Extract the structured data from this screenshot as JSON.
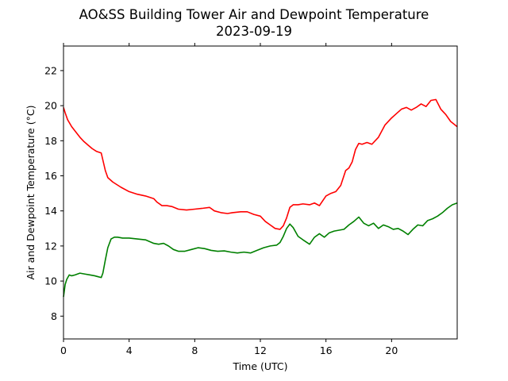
{
  "chart_data": {
    "type": "line",
    "title": "AO&SS Building Tower Air and Dewpoint Temperature",
    "subtitle": "2023-09-19",
    "xlabel": "Time (UTC)",
    "ylabel": "Air and Dewpoint Temperature (°C)",
    "xlim": [
      0,
      24
    ],
    "ylim": [
      6.7,
      23.4
    ],
    "xticks": [
      0,
      4,
      8,
      12,
      16,
      20
    ],
    "yticks": [
      8,
      10,
      12,
      14,
      16,
      18,
      20,
      22
    ],
    "grid": false,
    "legend": "none",
    "series": [
      {
        "color": "#ff0000",
        "x": [
          0,
          0.1,
          0.25,
          0.5,
          0.75,
          1.0,
          1.25,
          1.5,
          1.75,
          2.0,
          2.3,
          2.4,
          2.55,
          2.7,
          3.0,
          3.5,
          4.0,
          4.5,
          5.0,
          5.5,
          5.7,
          6.0,
          6.3,
          6.6,
          7.0,
          7.5,
          8.0,
          8.5,
          8.9,
          9.2,
          9.6,
          10.0,
          10.3,
          10.8,
          11.2,
          11.6,
          12.0,
          12.3,
          12.6,
          12.9,
          13.2,
          13.4,
          13.6,
          13.8,
          14.0,
          14.3,
          14.6,
          15.0,
          15.3,
          15.6,
          16.0,
          16.3,
          16.6,
          16.9,
          17.2,
          17.4,
          17.6,
          17.8,
          18.0,
          18.2,
          18.5,
          18.8,
          19.2,
          19.6,
          20.0,
          20.3,
          20.6,
          20.9,
          21.2,
          21.5,
          21.8,
          22.1,
          22.4,
          22.7,
          23.0,
          23.3,
          23.6,
          24.0
        ],
        "y": [
          19.9,
          19.6,
          19.2,
          18.8,
          18.5,
          18.2,
          17.95,
          17.75,
          17.55,
          17.4,
          17.3,
          16.9,
          16.3,
          15.9,
          15.65,
          15.35,
          15.1,
          14.95,
          14.85,
          14.7,
          14.5,
          14.3,
          14.3,
          14.25,
          14.1,
          14.05,
          14.1,
          14.15,
          14.2,
          14.0,
          13.9,
          13.85,
          13.9,
          13.95,
          13.95,
          13.8,
          13.7,
          13.4,
          13.2,
          13.0,
          12.95,
          13.15,
          13.6,
          14.2,
          14.35,
          14.35,
          14.4,
          14.35,
          14.45,
          14.3,
          14.85,
          15.0,
          15.1,
          15.45,
          16.3,
          16.45,
          16.8,
          17.5,
          17.85,
          17.8,
          17.9,
          17.8,
          18.2,
          18.9,
          19.3,
          19.55,
          19.8,
          19.9,
          19.75,
          19.9,
          20.1,
          19.95,
          20.3,
          20.35,
          19.8,
          19.5,
          19.1,
          18.8
        ]
      },
      {
        "color": "#008000",
        "x": [
          0,
          0.1,
          0.2,
          0.35,
          0.5,
          0.7,
          1.0,
          1.3,
          1.6,
          1.9,
          2.1,
          2.3,
          2.4,
          2.55,
          2.7,
          2.9,
          3.1,
          3.3,
          3.6,
          4.0,
          4.5,
          5.0,
          5.5,
          5.8,
          6.1,
          6.4,
          6.7,
          7.0,
          7.4,
          7.8,
          8.2,
          8.6,
          9.0,
          9.4,
          9.8,
          10.2,
          10.6,
          11.0,
          11.4,
          11.8,
          12.2,
          12.6,
          13.0,
          13.2,
          13.4,
          13.6,
          13.8,
          14.0,
          14.3,
          14.6,
          15.0,
          15.3,
          15.6,
          15.9,
          16.2,
          16.5,
          16.8,
          17.1,
          17.4,
          17.7,
          18.0,
          18.3,
          18.6,
          18.9,
          19.2,
          19.5,
          19.8,
          20.1,
          20.4,
          20.7,
          21.0,
          21.3,
          21.6,
          21.9,
          22.2,
          22.5,
          22.8,
          23.1,
          23.4,
          23.7,
          24.0
        ],
        "y": [
          9.1,
          9.8,
          10.1,
          10.35,
          10.3,
          10.35,
          10.45,
          10.4,
          10.35,
          10.3,
          10.25,
          10.2,
          10.45,
          11.2,
          11.9,
          12.4,
          12.5,
          12.5,
          12.45,
          12.45,
          12.4,
          12.35,
          12.15,
          12.1,
          12.15,
          12.0,
          11.8,
          11.7,
          11.7,
          11.8,
          11.9,
          11.85,
          11.75,
          11.7,
          11.72,
          11.65,
          11.6,
          11.65,
          11.6,
          11.75,
          11.9,
          12.0,
          12.05,
          12.2,
          12.55,
          13.0,
          13.25,
          13.05,
          12.55,
          12.35,
          12.1,
          12.5,
          12.7,
          12.5,
          12.75,
          12.85,
          12.9,
          12.95,
          13.2,
          13.4,
          13.65,
          13.3,
          13.15,
          13.3,
          13.0,
          13.2,
          13.1,
          12.95,
          13.0,
          12.85,
          12.65,
          12.95,
          13.2,
          13.15,
          13.45,
          13.55,
          13.7,
          13.9,
          14.15,
          14.35,
          14.45
        ]
      }
    ]
  }
}
